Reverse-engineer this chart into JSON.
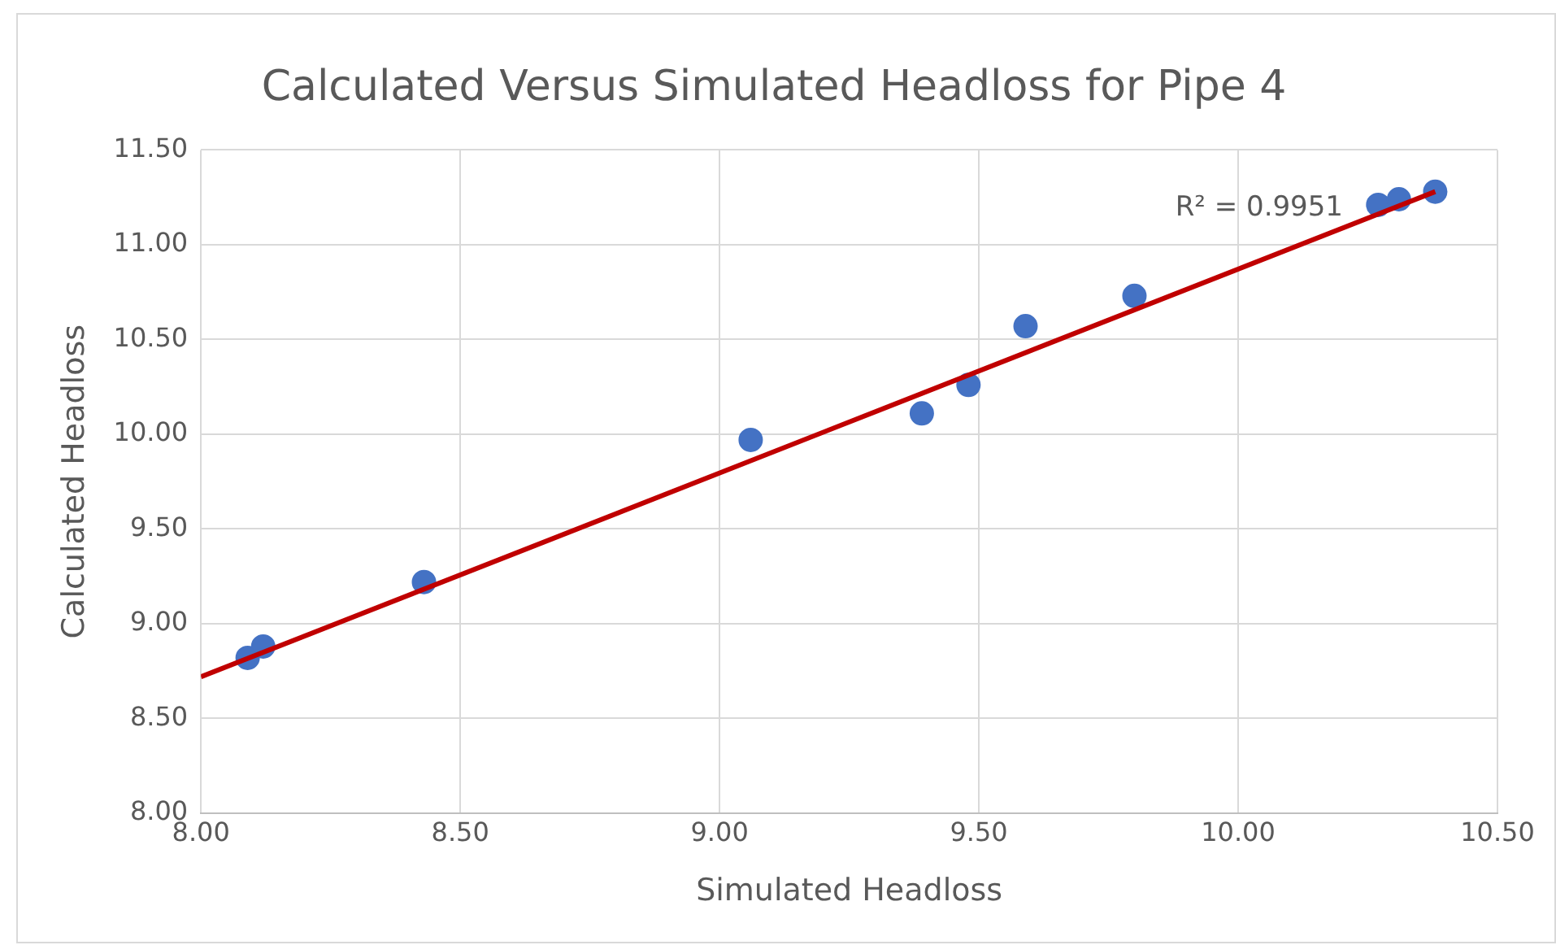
{
  "chart_data": {
    "type": "scatter",
    "title": "Calculated Versus Simulated Headloss for Pipe 4",
    "xlabel": "Simulated Headloss",
    "ylabel": "Calculated Headloss",
    "x": [
      8.09,
      8.12,
      8.43,
      9.06,
      9.39,
      9.48,
      9.59,
      9.8,
      10.27,
      10.31,
      10.38
    ],
    "series": [
      {
        "color": "#4472c4",
        "values": [
          8.82,
          8.88,
          9.22,
          9.97,
          10.11,
          10.26,
          10.57,
          10.73,
          11.21,
          11.24,
          11.28
        ]
      },
      {
        "type": "line",
        "marker": "none",
        "color": "#c00000",
        "x": [
          8.0,
          10.38
        ],
        "values": [
          8.72,
          11.28
        ]
      }
    ],
    "xlim": [
      8.0,
      10.5
    ],
    "xticks": [
      {
        "value": 8,
        "label": "8.00"
      },
      {
        "value": 8.5,
        "label": "8.50"
      },
      {
        "value": 9,
        "label": "9.00"
      },
      {
        "value": 9.5,
        "label": "9.50"
      },
      {
        "value": 10,
        "label": "10.00"
      },
      {
        "value": 10.5,
        "label": "10.50"
      }
    ],
    "ylim": [
      8.0,
      11.5
    ],
    "yticks": [
      {
        "value": 8,
        "label": "8.00"
      },
      {
        "value": 8.5,
        "label": "8.50"
      },
      {
        "value": 9,
        "label": "9.00"
      },
      {
        "value": 9.5,
        "label": "9.50"
      },
      {
        "value": 10,
        "label": "10.00"
      },
      {
        "value": 10.5,
        "label": "10.50"
      },
      {
        "value": 11,
        "label": "11.00"
      },
      {
        "value": 11.5,
        "label": "11.50"
      }
    ],
    "annotations": [
      "R² = 0.9951"
    ],
    "grid": true,
    "legend": false,
    "marker": "circle"
  }
}
